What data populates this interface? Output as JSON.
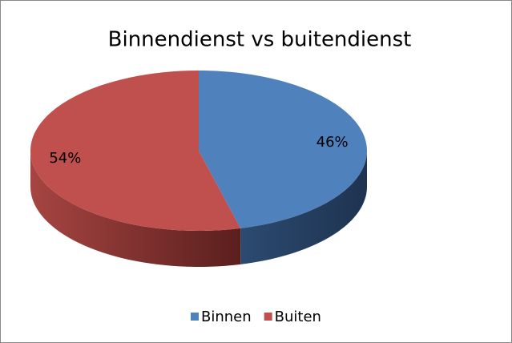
{
  "chart_data": {
    "type": "pie3d",
    "title": "Binnendienst vs buitendienst",
    "categories": [
      "Binnen",
      "Buiten"
    ],
    "values": [
      46,
      54
    ],
    "value_labels": [
      "46%",
      "54%"
    ],
    "colors": [
      "#4f81bd",
      "#c0504d"
    ],
    "legend": "bottom"
  }
}
